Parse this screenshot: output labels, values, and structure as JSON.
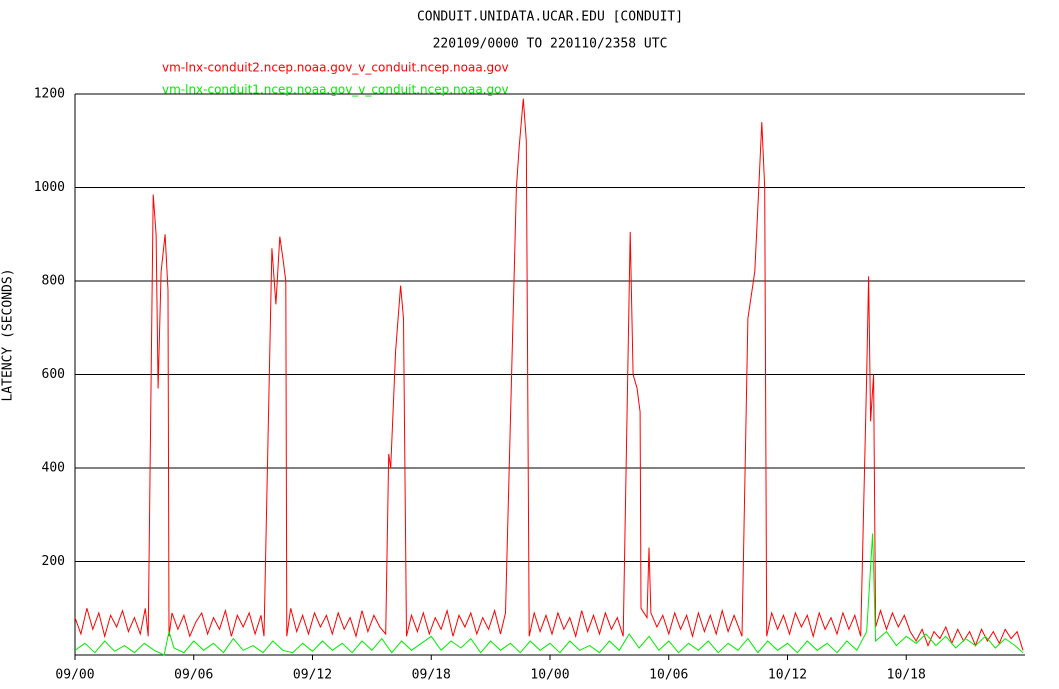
{
  "chart_data": {
    "type": "line",
    "title": "CONDUIT.UNIDATA.UCAR.EDU [CONDUIT]",
    "subtitle": "220109/0000 TO 220110/2358 UTC",
    "y_label": "LATENCY (SECONDS)",
    "xlim": [
      0,
      48
    ],
    "xticks": [
      {
        "value": 0,
        "label": "09/00"
      },
      {
        "value": 6,
        "label": "09/06"
      },
      {
        "value": 12,
        "label": "09/12"
      },
      {
        "value": 18,
        "label": "09/18"
      },
      {
        "value": 24,
        "label": "10/00"
      },
      {
        "value": 30,
        "label": "10/06"
      },
      {
        "value": 36,
        "label": "10/12"
      },
      {
        "value": 42,
        "label": "10/18"
      }
    ],
    "ylim": [
      0,
      1200
    ],
    "yticks": [
      200,
      400,
      600,
      800,
      1000,
      1200
    ],
    "grid": true,
    "series": [
      {
        "name": "vm-lnx-conduit2.ncep.noaa.gov_v_conduit.ncep.noaa.gov",
        "color": "#ff0000",
        "x": [
          0,
          0.3,
          0.6,
          0.9,
          1.2,
          1.5,
          1.8,
          2.1,
          2.4,
          2.7,
          3.0,
          3.3,
          3.55,
          3.7,
          3.95,
          4.1,
          4.2,
          4.35,
          4.55,
          4.7,
          4.75,
          4.9,
          5.2,
          5.5,
          5.8,
          6.1,
          6.4,
          6.7,
          7.0,
          7.3,
          7.6,
          7.9,
          8.2,
          8.5,
          8.8,
          9.1,
          9.4,
          9.55,
          9.95,
          10.15,
          10.35,
          10.5,
          10.65,
          10.7,
          10.9,
          11.2,
          11.5,
          11.8,
          12.1,
          12.4,
          12.7,
          13.0,
          13.3,
          13.6,
          13.9,
          14.2,
          14.5,
          14.8,
          15.1,
          15.4,
          15.7,
          15.85,
          15.95,
          16.2,
          16.45,
          16.6,
          16.75,
          17.0,
          17.3,
          17.6,
          17.9,
          18.2,
          18.5,
          18.8,
          19.1,
          19.4,
          19.7,
          20.0,
          20.3,
          20.6,
          20.9,
          21.2,
          21.5,
          21.75,
          22.3,
          22.45,
          22.65,
          22.8,
          22.95,
          23.2,
          23.5,
          23.8,
          24.1,
          24.4,
          24.7,
          25.0,
          25.3,
          25.6,
          25.9,
          26.2,
          26.5,
          26.8,
          27.1,
          27.4,
          27.7,
          28.05,
          28.2,
          28.4,
          28.55,
          28.6,
          28.9,
          29.0,
          29.1,
          29.4,
          29.7,
          30.0,
          30.3,
          30.6,
          30.9,
          31.2,
          31.5,
          31.8,
          32.1,
          32.4,
          32.7,
          33.0,
          33.3,
          33.7,
          34.0,
          34.35,
          34.55,
          34.7,
          34.85,
          34.95,
          35.2,
          35.5,
          35.8,
          36.1,
          36.4,
          36.7,
          37.0,
          37.3,
          37.6,
          37.9,
          38.2,
          38.5,
          38.8,
          39.1,
          39.4,
          39.7,
          40.0,
          40.1,
          40.2,
          40.35,
          40.45,
          40.7,
          41.0,
          41.3,
          41.6,
          41.9,
          42.2,
          42.5,
          42.8,
          43.1,
          43.4,
          43.7,
          44.0,
          44.3,
          44.6,
          44.9,
          45.2,
          45.5,
          45.8,
          46.1,
          46.4,
          46.7,
          47.0,
          47.3,
          47.6,
          47.9
        ],
        "values": [
          80,
          45,
          100,
          55,
          90,
          40,
          85,
          60,
          95,
          50,
          80,
          45,
          100,
          40,
          985,
          900,
          570,
          820,
          900,
          780,
          40,
          90,
          55,
          85,
          40,
          70,
          90,
          45,
          80,
          55,
          95,
          40,
          85,
          60,
          90,
          45,
          85,
          40,
          870,
          750,
          895,
          850,
          800,
          40,
          100,
          50,
          85,
          45,
          90,
          60,
          85,
          45,
          90,
          55,
          80,
          40,
          95,
          50,
          85,
          60,
          45,
          430,
          400,
          650,
          790,
          720,
          40,
          85,
          50,
          90,
          45,
          80,
          55,
          95,
          40,
          85,
          60,
          90,
          45,
          80,
          55,
          95,
          45,
          90,
          1000,
          1090,
          1190,
          1100,
          40,
          90,
          50,
          85,
          45,
          90,
          55,
          80,
          40,
          95,
          50,
          85,
          45,
          90,
          55,
          80,
          40,
          905,
          600,
          570,
          520,
          100,
          80,
          230,
          90,
          60,
          85,
          45,
          90,
          55,
          85,
          40,
          90,
          50,
          85,
          45,
          95,
          50,
          85,
          40,
          720,
          820,
          1000,
          1140,
          1000,
          40,
          90,
          55,
          85,
          45,
          90,
          60,
          85,
          40,
          90,
          55,
          80,
          45,
          90,
          55,
          85,
          40,
          600,
          810,
          500,
          600,
          60,
          95,
          55,
          90,
          60,
          85,
          50,
          30,
          55,
          20,
          50,
          35,
          60,
          25,
          55,
          30,
          50,
          20,
          55,
          30,
          50,
          25,
          55,
          35,
          50,
          10
        ]
      },
      {
        "name": "vm-lnx-conduit1.ncep.noaa.gov_v_conduit.ncep.noaa.gov",
        "color": "#00ee00",
        "x": [
          0,
          0.5,
          1.0,
          1.5,
          2.0,
          2.5,
          3.0,
          3.5,
          4.0,
          4.5,
          4.75,
          5.0,
          5.5,
          6.0,
          6.5,
          7.0,
          7.5,
          8.0,
          8.5,
          9.0,
          9.5,
          10.0,
          10.5,
          11.0,
          11.5,
          12.0,
          12.5,
          13.0,
          13.5,
          14.0,
          14.5,
          15.0,
          15.5,
          16.0,
          16.5,
          17.0,
          17.5,
          18.0,
          18.5,
          19.0,
          19.5,
          20.0,
          20.5,
          21.0,
          21.5,
          22.0,
          22.5,
          23.0,
          23.5,
          24.0,
          24.5,
          25.0,
          25.5,
          26.0,
          26.5,
          27.0,
          27.5,
          28.0,
          28.5,
          29.0,
          29.5,
          30.0,
          30.5,
          31.0,
          31.5,
          32.0,
          32.5,
          33.0,
          33.5,
          34.0,
          34.5,
          35.0,
          35.5,
          36.0,
          36.5,
          37.0,
          37.5,
          38.0,
          38.5,
          39.0,
          39.5,
          40.0,
          40.3,
          40.45,
          41.0,
          41.5,
          42.0,
          42.5,
          43.0,
          43.5,
          44.0,
          44.5,
          45.0,
          45.5,
          46.0,
          46.5,
          47.0,
          47.5,
          47.9
        ],
        "values": [
          10,
          25,
          5,
          30,
          8,
          20,
          5,
          25,
          10,
          0,
          50,
          15,
          5,
          30,
          10,
          25,
          5,
          35,
          10,
          20,
          5,
          30,
          10,
          5,
          25,
          8,
          30,
          10,
          25,
          5,
          30,
          10,
          35,
          5,
          30,
          10,
          25,
          40,
          10,
          30,
          15,
          35,
          5,
          30,
          10,
          25,
          5,
          30,
          10,
          25,
          5,
          30,
          10,
          20,
          5,
          30,
          10,
          45,
          15,
          40,
          10,
          30,
          5,
          25,
          10,
          30,
          5,
          25,
          10,
          35,
          5,
          30,
          10,
          25,
          5,
          30,
          10,
          25,
          5,
          30,
          10,
          50,
          260,
          30,
          50,
          20,
          40,
          25,
          45,
          20,
          40,
          15,
          35,
          20,
          40,
          15,
          35,
          20,
          5
        ]
      }
    ]
  }
}
